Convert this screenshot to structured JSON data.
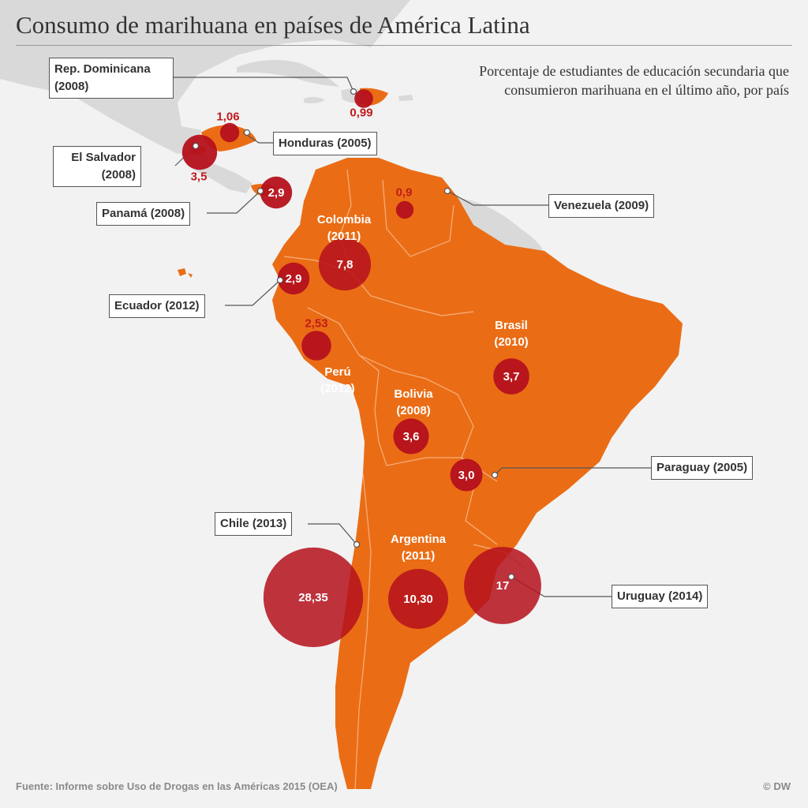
{
  "title": "Consumo de marihuana en países de América Latina",
  "subtitle": "Porcentaje de estudiantes de educación secundaria que consumieron marihuana en el último año, por país",
  "source": "Fuente: Informe sobre Uso de Drogas en las Américas 2015 (OEA)",
  "credit": "© DW",
  "colors": {
    "background": "#f2f2f2",
    "other_land": "#d9d9d9",
    "highlight_land": "#ea6d16",
    "bubble": "#b5111c",
    "value_text": "#c11b1b"
  },
  "countries": [
    {
      "name": "Rep. Dominicana",
      "year": "(2008)",
      "value": "0,99"
    },
    {
      "name": "Honduras",
      "year": "(2005)",
      "value": "1,06"
    },
    {
      "name": "El Salvador",
      "year": "(2008)",
      "value": "3,5"
    },
    {
      "name": "Panamá",
      "year": "(2008)",
      "value": "2,9"
    },
    {
      "name": "Venezuela",
      "year": "(2009)",
      "value": "0,9"
    },
    {
      "name": "Colombia",
      "year": "(2011)",
      "value": "7,8"
    },
    {
      "name": "Ecuador",
      "year": "(2012)",
      "value": "2,9"
    },
    {
      "name": "Perú",
      "year": "(2012)",
      "value": "2,53"
    },
    {
      "name": "Brasil",
      "year": "(2010)",
      "value": "3,7"
    },
    {
      "name": "Bolivia",
      "year": "(2008)",
      "value": "3,6"
    },
    {
      "name": "Paraguay",
      "year": "(2005)",
      "value": "3,0"
    },
    {
      "name": "Chile",
      "year": "(2013)",
      "value": "28,35"
    },
    {
      "name": "Argentina",
      "year": "(2011)",
      "value": "10,30"
    },
    {
      "name": "Uruguay",
      "year": "(2014)",
      "value": "17"
    }
  ]
}
